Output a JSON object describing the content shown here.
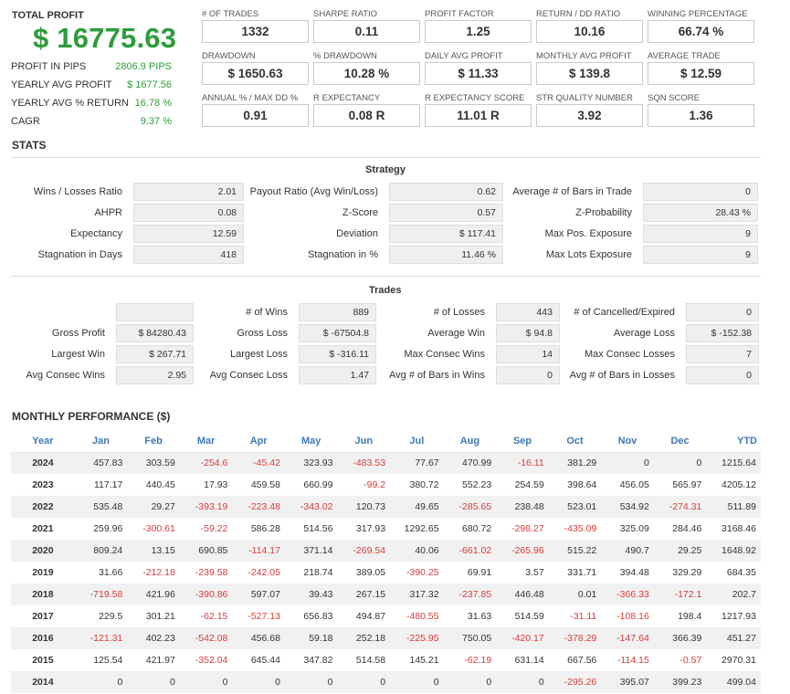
{
  "summary": {
    "total_profit_label": "TOTAL PROFIT",
    "total_profit_value": "$ 16775.63",
    "rows": [
      {
        "label": "PROFIT IN PIPS",
        "value": "2806.9 PIPS"
      },
      {
        "label": "YEARLY AVG PROFIT",
        "value": "$ 1677.56"
      },
      {
        "label": "YEARLY AVG % RETURN",
        "value": "16.78 %"
      },
      {
        "label": "CAGR",
        "value": "9.37 %"
      }
    ]
  },
  "metrics": [
    {
      "label": "# OF TRADES",
      "value": "1332"
    },
    {
      "label": "SHARPE RATIO",
      "value": "0.11"
    },
    {
      "label": "PROFIT FACTOR",
      "value": "1.25"
    },
    {
      "label": "RETURN / DD RATIO",
      "value": "10.16"
    },
    {
      "label": "WINNING PERCENTAGE",
      "value": "66.74 %"
    },
    {
      "label": "DRAWDOWN",
      "value": "$ 1650.63"
    },
    {
      "label": "% DRAWDOWN",
      "value": "10.28 %"
    },
    {
      "label": "DAILY AVG PROFIT",
      "value": "$ 11.33"
    },
    {
      "label": "MONTHLY AVG PROFIT",
      "value": "$ 139.8"
    },
    {
      "label": "AVERAGE TRADE",
      "value": "$ 12.59"
    },
    {
      "label": "ANNUAL % / MAX DD %",
      "value": "0.91"
    },
    {
      "label": "R EXPECTANCY",
      "value": "0.08 R"
    },
    {
      "label": "R EXPECTANCY SCORE",
      "value": "11.01 R"
    },
    {
      "label": "STR QUALITY NUMBER",
      "value": "3.92"
    },
    {
      "label": "SQN SCORE",
      "value": "1.36"
    }
  ],
  "stats": {
    "title": "STATS",
    "strategy": {
      "title": "Strategy",
      "rows": [
        [
          {
            "label": "Wins / Losses Ratio",
            "value": "2.01"
          },
          {
            "label": "Payout Ratio (Avg Win/Loss)",
            "value": "0.62"
          },
          {
            "label": "Average # of Bars in Trade",
            "value": "0"
          }
        ],
        [
          {
            "label": "AHPR",
            "value": "0.08"
          },
          {
            "label": "Z-Score",
            "value": "0.57"
          },
          {
            "label": "Z-Probability",
            "value": "28.43 %"
          }
        ],
        [
          {
            "label": "Expectancy",
            "value": "12.59"
          },
          {
            "label": "Deviation",
            "value": "$ 117.41"
          },
          {
            "label": "Max Pos. Exposure",
            "value": "9"
          }
        ],
        [
          {
            "label": "Stagnation in Days",
            "value": "418"
          },
          {
            "label": "Stagnation in %",
            "value": "11.46 %"
          },
          {
            "label": "Max Lots Exposure",
            "value": "9"
          }
        ]
      ]
    },
    "trades": {
      "title": "Trades",
      "rows": [
        [
          {
            "label": "",
            "value": ""
          },
          {
            "label": "# of Wins",
            "value": "889"
          },
          {
            "label": "# of Losses",
            "value": "443"
          },
          {
            "label": "# of Cancelled/Expired",
            "value": "0"
          }
        ],
        [
          {
            "label": "Gross Profit",
            "value": "$ 84280.43"
          },
          {
            "label": "Gross Loss",
            "value": "$ -67504.8"
          },
          {
            "label": "Average Win",
            "value": "$ 94.8"
          },
          {
            "label": "Average Loss",
            "value": "$ -152.38"
          }
        ],
        [
          {
            "label": "Largest Win",
            "value": "$ 267.71"
          },
          {
            "label": "Largest Loss",
            "value": "$ -316.11"
          },
          {
            "label": "Max Consec Wins",
            "value": "14"
          },
          {
            "label": "Max Consec Losses",
            "value": "7"
          }
        ],
        [
          {
            "label": "Avg Consec Wins",
            "value": "2.95"
          },
          {
            "label": "Avg Consec Loss",
            "value": "1.47"
          },
          {
            "label": "Avg # of Bars in Wins",
            "value": "0"
          },
          {
            "label": "Avg # of Bars in Losses",
            "value": "0"
          }
        ]
      ]
    }
  },
  "monthly": {
    "title": "MONTHLY PERFORMANCE ($)",
    "headers": [
      "Year",
      "Jan",
      "Feb",
      "Mar",
      "Apr",
      "May",
      "Jun",
      "Jul",
      "Aug",
      "Sep",
      "Oct",
      "Nov",
      "Dec",
      "YTD"
    ],
    "rows": [
      [
        "2024",
        "457.83",
        "303.59",
        "-254.6",
        "-45.42",
        "323.93",
        "-483.53",
        "77.67",
        "470.99",
        "-16.11",
        "381.29",
        "0",
        "0",
        "1215.64"
      ],
      [
        "2023",
        "117.17",
        "440.45",
        "17.93",
        "459.58",
        "660.99",
        "-99.2",
        "380.72",
        "552.23",
        "254.59",
        "398.64",
        "456.05",
        "565.97",
        "4205.12"
      ],
      [
        "2022",
        "535.48",
        "29.27",
        "-393.19",
        "-223.48",
        "-343.02",
        "120.73",
        "49.65",
        "-285.65",
        "238.48",
        "523.01",
        "534.92",
        "-274.31",
        "511.89"
      ],
      [
        "2021",
        "259.96",
        "-300.61",
        "-59.22",
        "586.28",
        "514.56",
        "317.93",
        "1292.65",
        "680.72",
        "-298.27",
        "-435.09",
        "325.09",
        "284.46",
        "3168.46"
      ],
      [
        "2020",
        "809.24",
        "13.15",
        "690.85",
        "-114.17",
        "371.14",
        "-269.54",
        "40.06",
        "-661.02",
        "-265.96",
        "515.22",
        "490.7",
        "29.25",
        "1648.92"
      ],
      [
        "2019",
        "31.66",
        "-212.18",
        "-239.58",
        "-242.05",
        "218.74",
        "389.05",
        "-390.25",
        "69.91",
        "3.57",
        "331.71",
        "394.48",
        "329.29",
        "684.35"
      ],
      [
        "2018",
        "-719.58",
        "421.96",
        "-390.86",
        "597.07",
        "39.43",
        "267.15",
        "317.32",
        "-237.85",
        "446.48",
        "0.01",
        "-366.33",
        "-172.1",
        "202.7"
      ],
      [
        "2017",
        "229.5",
        "301.21",
        "-62.15",
        "-527.13",
        "656.83",
        "494.87",
        "-480.55",
        "31.63",
        "514.59",
        "-31.11",
        "-108.16",
        "198.4",
        "1217.93"
      ],
      [
        "2016",
        "-121.31",
        "402.23",
        "-542.08",
        "456.68",
        "59.18",
        "252.18",
        "-225.95",
        "750.05",
        "-420.17",
        "-378.29",
        "-147.64",
        "366.39",
        "451.27"
      ],
      [
        "2015",
        "125.54",
        "421.97",
        "-352.04",
        "645.44",
        "347.82",
        "514.58",
        "145.21",
        "-62.19",
        "631.14",
        "667.56",
        "-114.15",
        "-0.57",
        "2970.31"
      ],
      [
        "2014",
        "0",
        "0",
        "0",
        "0",
        "0",
        "0",
        "0",
        "0",
        "0",
        "-295.26",
        "395.07",
        "399.23",
        "499.04"
      ]
    ]
  },
  "colors": {
    "profit_green": "#2e9c3a",
    "negative_red": "#d53b3b",
    "header_blue": "#3f78b5"
  }
}
